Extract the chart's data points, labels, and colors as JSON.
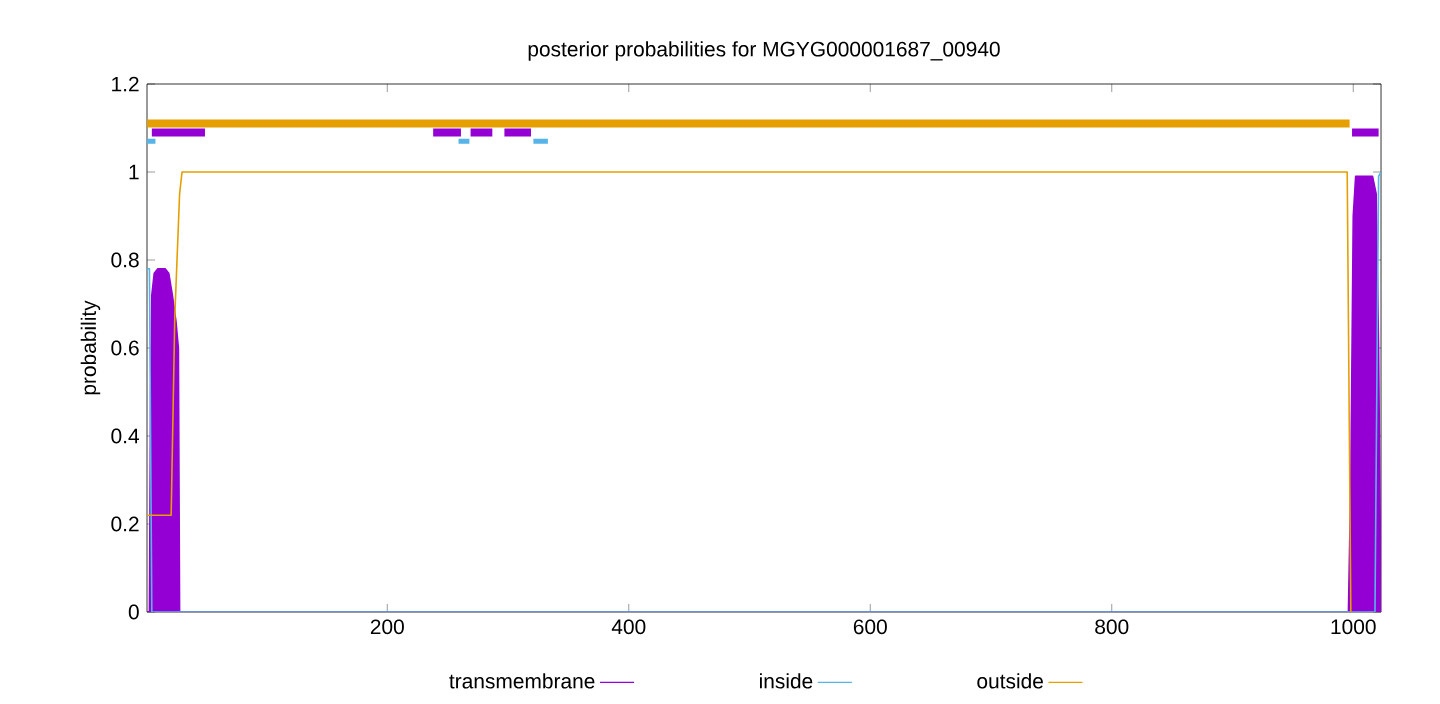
{
  "chart_data": {
    "type": "line",
    "title": "posterior probabilities for MGYG000001687_00940",
    "ylabel": "probability",
    "xlim": [
      1,
      1023
    ],
    "ylim": [
      0,
      1.2
    ],
    "xticks": [
      200,
      400,
      600,
      800,
      1000
    ],
    "yticks": [
      0,
      0.2,
      0.4,
      0.6,
      0.8,
      1,
      1.2
    ],
    "legend": "bottom",
    "grid": false,
    "series": [
      {
        "name": "transmembrane",
        "type": "area",
        "color": "#9400d3",
        "x": [
          1,
          3,
          4,
          5,
          7,
          10,
          16,
          19,
          22,
          25,
          27,
          28,
          996,
          998,
          1000,
          1002,
          1016,
          1019,
          1021,
          1023
        ],
        "values": [
          0,
          0,
          0.5,
          0.72,
          0.77,
          0.78,
          0.78,
          0.77,
          0.72,
          0.66,
          0.6,
          0,
          0,
          0.3,
          0.9,
          0.99,
          0.99,
          0.95,
          0.6,
          0
        ]
      },
      {
        "name": "inside",
        "color": "#56b4e9",
        "x": [
          1,
          3,
          5,
          1018,
          1021,
          1023
        ],
        "values": [
          0.78,
          0.78,
          0,
          0,
          0.99,
          1
        ]
      },
      {
        "name": "outside",
        "color": "#e69f00",
        "x": [
          1,
          21,
          24,
          28,
          30,
          995,
          998
        ],
        "values": [
          0.22,
          0.22,
          0.67,
          0.95,
          1,
          1,
          0
        ]
      },
      {
        "color": "#e69f00",
        "x": [
          1,
          997
        ],
        "values": [
          1.11,
          1.11
        ]
      },
      {
        "color": "#9400d3",
        "x": [
          5,
          49,
          null,
          238,
          261,
          null,
          269,
          287,
          null,
          297,
          319,
          null,
          999,
          1021
        ],
        "values": [
          1.09,
          1.09,
          null,
          1.09,
          1.09,
          null,
          1.09,
          1.09,
          null,
          1.09,
          1.09,
          null,
          1.09,
          1.09
        ]
      },
      {
        "color": "#56b4e9",
        "x": [
          1,
          8,
          null,
          259,
          268,
          null,
          321,
          333
        ],
        "values": [
          1.07,
          1.07,
          null,
          1.07,
          1.07,
          null,
          1.07,
          1.07
        ]
      }
    ]
  }
}
